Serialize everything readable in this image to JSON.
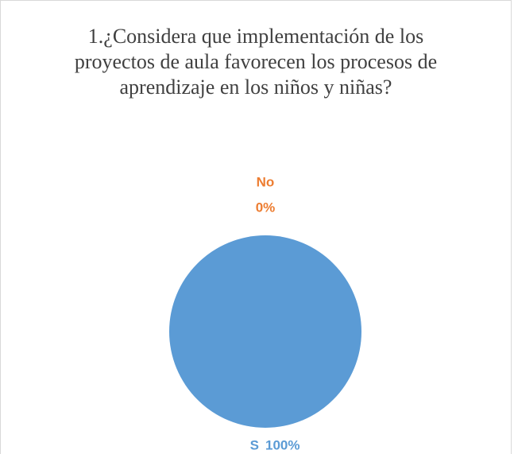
{
  "chart_data": {
    "type": "pie",
    "title": "1.¿Considera que implementación de los proyectos de aula favorecen los procesos de aprendizaje en los niños y niñas?",
    "categories": [
      "S",
      "No"
    ],
    "values": [
      100,
      0
    ],
    "value_labels": [
      "100%",
      "0%"
    ],
    "colors": [
      "#5b9bd5",
      "#ed7d31"
    ]
  }
}
